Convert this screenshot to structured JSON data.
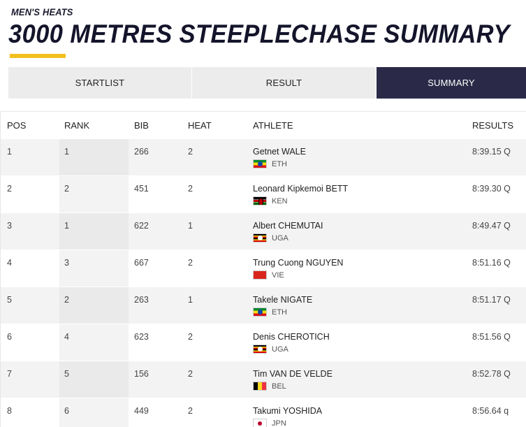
{
  "header": {
    "subtitle": "MEN'S HEATS",
    "title": "3000 METRES STEEPLECHASE SUMMARY",
    "accent_color": "#f2c01e"
  },
  "tabs": [
    {
      "label": "STARTLIST",
      "active": false
    },
    {
      "label": "RESULT",
      "active": false
    },
    {
      "label": "SUMMARY",
      "active": true
    }
  ],
  "table": {
    "columns": [
      "POS",
      "RANK",
      "BIB",
      "HEAT",
      "ATHLETE",
      "RESULTS"
    ],
    "rows": [
      {
        "pos": "1",
        "rank": "1",
        "bib": "266",
        "heat": "2",
        "name": "Getnet WALE",
        "country": "ETH",
        "flag": "eth",
        "result": "8:39.15 Q"
      },
      {
        "pos": "2",
        "rank": "2",
        "bib": "451",
        "heat": "2",
        "name": "Leonard Kipkemoi BETT",
        "country": "KEN",
        "flag": "ken",
        "result": "8:39.30 Q"
      },
      {
        "pos": "3",
        "rank": "1",
        "bib": "622",
        "heat": "1",
        "name": "Albert CHEMUTAI",
        "country": "UGA",
        "flag": "uga",
        "result": "8:49.47 Q"
      },
      {
        "pos": "4",
        "rank": "3",
        "bib": "667",
        "heat": "2",
        "name": "Trung Cuong NGUYEN",
        "country": "VIE",
        "flag": "vie",
        "result": "8:51.16 Q"
      },
      {
        "pos": "5",
        "rank": "2",
        "bib": "263",
        "heat": "1",
        "name": "Takele NIGATE",
        "country": "ETH",
        "flag": "eth",
        "result": "8:51.17 Q"
      },
      {
        "pos": "6",
        "rank": "4",
        "bib": "623",
        "heat": "2",
        "name": "Denis CHEROTICH",
        "country": "UGA",
        "flag": "uga",
        "result": "8:51.56 Q"
      },
      {
        "pos": "7",
        "rank": "5",
        "bib": "156",
        "heat": "2",
        "name": "Tim VAN DE VELDE",
        "country": "BEL",
        "flag": "bel",
        "result": "8:52.78 Q"
      },
      {
        "pos": "8",
        "rank": "6",
        "bib": "449",
        "heat": "2",
        "name": "Takumi YOSHIDA",
        "country": "JPN",
        "flag": "jpn",
        "result": "8:56.64 q"
      }
    ]
  }
}
